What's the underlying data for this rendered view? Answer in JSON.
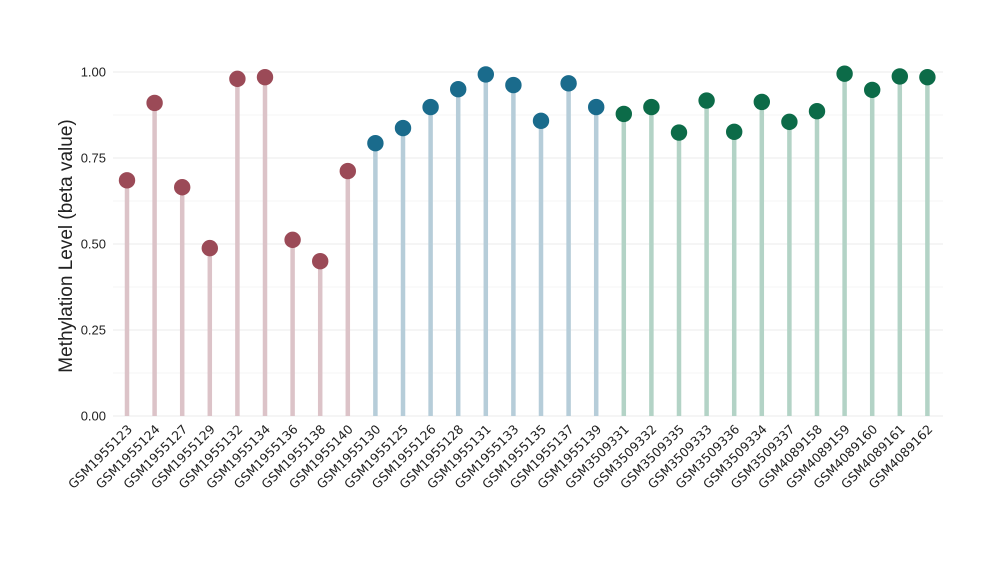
{
  "chart_data": {
    "type": "lollipop",
    "ylabel": "Methylation Level (beta value)",
    "ylim": [
      0,
      1.0
    ],
    "yticks": [
      0.0,
      0.25,
      0.5,
      0.75,
      1.0
    ],
    "ytick_labels": [
      "0.00",
      "0.25",
      "0.50",
      "0.75",
      "1.00"
    ],
    "grid": true,
    "legend": "none",
    "groups": [
      {
        "color": "#9b4a57",
        "stem_color": "#dcc3c8"
      },
      {
        "color": "#1a6b8c",
        "stem_color": "#b6cdd9"
      },
      {
        "color": "#0c6b48",
        "stem_color": "#b3d3c6"
      }
    ],
    "points": [
      {
        "label": "GSM1955123",
        "value": 0.685,
        "group": 0
      },
      {
        "label": "GSM1955124",
        "value": 0.91,
        "group": 0
      },
      {
        "label": "GSM1955127",
        "value": 0.665,
        "group": 0
      },
      {
        "label": "GSM1955129",
        "value": 0.488,
        "group": 0
      },
      {
        "label": "GSM1955132",
        "value": 0.98,
        "group": 0
      },
      {
        "label": "GSM1955134",
        "value": 0.985,
        "group": 0
      },
      {
        "label": "GSM1955136",
        "value": 0.512,
        "group": 0
      },
      {
        "label": "GSM1955138",
        "value": 0.45,
        "group": 0
      },
      {
        "label": "GSM1955140",
        "value": 0.712,
        "group": 0
      },
      {
        "label": "GSM1955130",
        "value": 0.793,
        "group": 1
      },
      {
        "label": "GSM1955125",
        "value": 0.837,
        "group": 1
      },
      {
        "label": "GSM1955126",
        "value": 0.898,
        "group": 1
      },
      {
        "label": "GSM1955128",
        "value": 0.95,
        "group": 1
      },
      {
        "label": "GSM1955131",
        "value": 0.993,
        "group": 1
      },
      {
        "label": "GSM1955133",
        "value": 0.962,
        "group": 1
      },
      {
        "label": "GSM1955135",
        "value": 0.858,
        "group": 1
      },
      {
        "label": "GSM1955137",
        "value": 0.967,
        "group": 1
      },
      {
        "label": "GSM1955139",
        "value": 0.898,
        "group": 1
      },
      {
        "label": "GSM3509331",
        "value": 0.878,
        "group": 2
      },
      {
        "label": "GSM3509332",
        "value": 0.898,
        "group": 2
      },
      {
        "label": "GSM3509335",
        "value": 0.824,
        "group": 2
      },
      {
        "label": "GSM3509333",
        "value": 0.917,
        "group": 2
      },
      {
        "label": "GSM3509336",
        "value": 0.826,
        "group": 2
      },
      {
        "label": "GSM3509334",
        "value": 0.913,
        "group": 2
      },
      {
        "label": "GSM3509337",
        "value": 0.855,
        "group": 2
      },
      {
        "label": "GSM4089158",
        "value": 0.886,
        "group": 2
      },
      {
        "label": "GSM4089159",
        "value": 0.995,
        "group": 2
      },
      {
        "label": "GSM4089160",
        "value": 0.948,
        "group": 2
      },
      {
        "label": "GSM4089161",
        "value": 0.987,
        "group": 2
      },
      {
        "label": "GSM4089162",
        "value": 0.985,
        "group": 2
      }
    ]
  }
}
